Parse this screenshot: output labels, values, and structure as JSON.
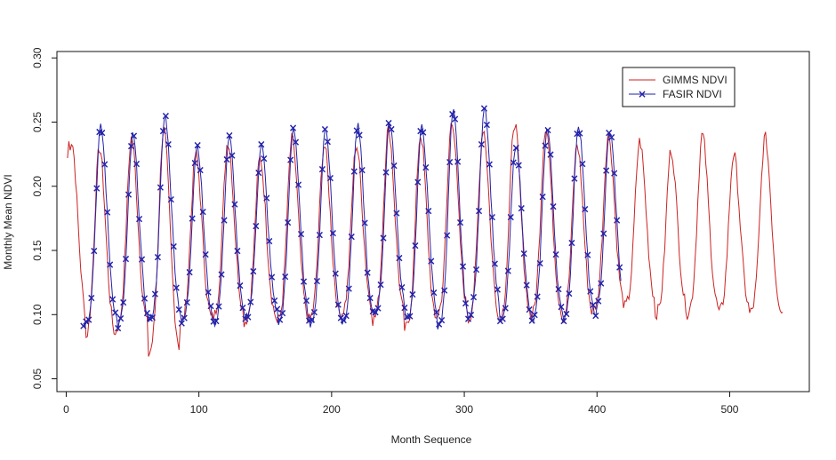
{
  "chart_data": {
    "type": "line",
    "title": "",
    "xlabel": "Month Sequence",
    "ylabel": "Monthly Mean NDVI",
    "xlim": [
      -7,
      560
    ],
    "ylim": [
      0.04,
      0.305
    ],
    "x_ticks": [
      0,
      100,
      200,
      300,
      400,
      500
    ],
    "x_tick_labels": [
      "0",
      "100",
      "200",
      "300",
      "400",
      "500"
    ],
    "y_ticks": [
      0.05,
      0.1,
      0.15,
      0.2,
      0.25,
      0.3
    ],
    "y_tick_labels": [
      "0.05",
      "0.10",
      "0.15",
      "0.20",
      "0.25",
      "0.30"
    ],
    "legend_position": "top-right",
    "grid": false,
    "series": [
      {
        "name": "GIMMS NDVI",
        "color": "#cc2222",
        "marker": "none",
        "peaks": [
          0.235,
          0.23,
          0.238,
          0.245,
          0.225,
          0.235,
          0.222,
          0.237,
          0.232,
          0.232,
          0.245,
          0.24,
          0.252,
          0.245,
          0.25,
          0.247,
          0.232,
          0.24,
          0.235,
          0.228,
          0.24,
          0.225,
          0.238
        ],
        "troughs": [
          0.09,
          0.079,
          0.088,
          0.068,
          0.092,
          0.097,
          0.094,
          0.093,
          0.095,
          0.1,
          0.095,
          0.088,
          0.098,
          0.095,
          0.095,
          0.097,
          0.095,
          0.103,
          0.105,
          0.1,
          0.1,
          0.1,
          0.1
        ],
        "x_range": [
          1,
          540
        ]
      },
      {
        "name": "FASIR NDVI",
        "color": "#2222aa",
        "marker": "x",
        "peaks": [
          0.246,
          0.24,
          0.255,
          0.232,
          0.238,
          0.232,
          0.246,
          0.245,
          0.247,
          0.25,
          0.246,
          0.258,
          0.263,
          0.233,
          0.245,
          0.248,
          0.243
        ],
        "troughs": [
          0.092,
          0.09,
          0.095,
          0.093,
          0.092,
          0.098,
          0.092,
          0.092,
          0.093,
          0.1,
          0.095,
          0.088,
          0.1,
          0.093,
          0.093,
          0.096,
          0.1
        ],
        "x_range": [
          13,
          418
        ]
      }
    ]
  }
}
